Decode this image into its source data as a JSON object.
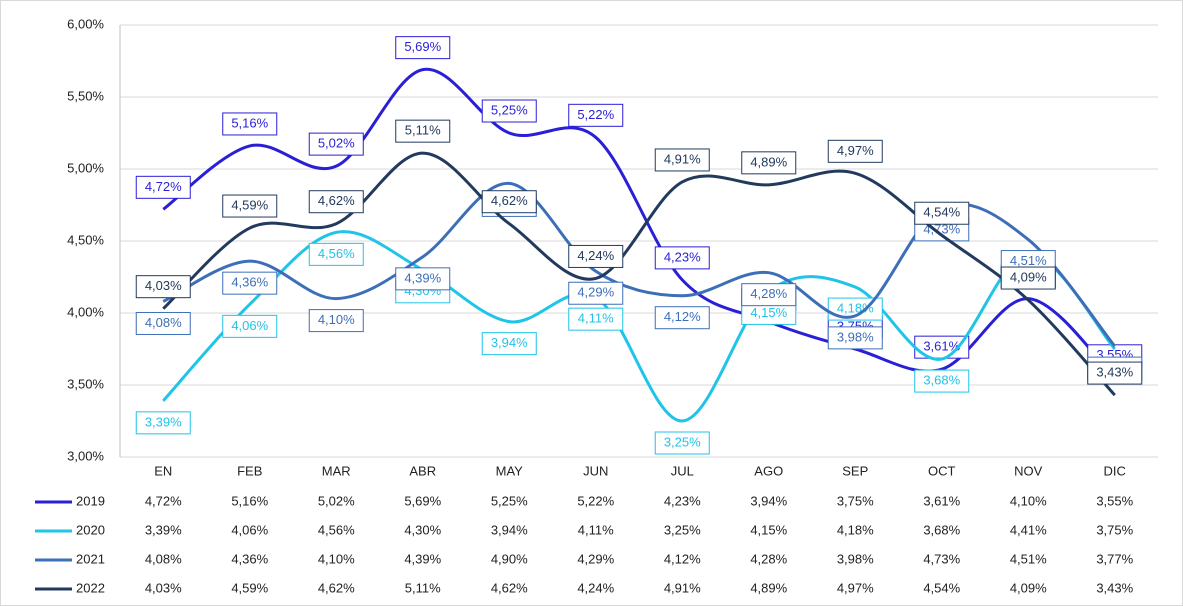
{
  "chart_data": {
    "type": "line",
    "categories": [
      "EN",
      "FEB",
      "MAR",
      "ABR",
      "MAY",
      "JUN",
      "JUL",
      "AGO",
      "SEP",
      "OCT",
      "NOV",
      "DIC"
    ],
    "ylim": [
      3,
      6
    ],
    "yticks": [
      {
        "value": 3,
        "label": "3,00%"
      },
      {
        "value": 3.5,
        "label": "3,50%"
      },
      {
        "value": 4,
        "label": "4,00%"
      },
      {
        "value": 4.5,
        "label": "4,50%"
      },
      {
        "value": 5,
        "label": "5,00%"
      },
      {
        "value": 5.5,
        "label": "5,50%"
      },
      {
        "value": 6,
        "label": "6,00%"
      }
    ],
    "grid": true,
    "series": [
      {
        "name": "2019",
        "color": "#2a1fd6",
        "values": [
          4.72,
          5.16,
          5.02,
          5.69,
          5.25,
          5.22,
          4.23,
          3.94,
          3.75,
          3.61,
          4.1,
          3.55
        ],
        "value_labels": [
          "4,72%",
          "5,16%",
          "5,02%",
          "5,69%",
          "5,25%",
          "5,22%",
          "4,23%",
          "3,94%",
          "3,75%",
          "3,61%",
          "4,10%",
          "3,55%"
        ]
      },
      {
        "name": "2020",
        "color": "#1fc4e8",
        "values": [
          3.39,
          4.06,
          4.56,
          4.3,
          3.94,
          4.11,
          3.25,
          4.15,
          4.18,
          3.68,
          4.41,
          3.75
        ],
        "value_labels": [
          "3,39%",
          "4,06%",
          "4,56%",
          "4,30%",
          "3,94%",
          "4,11%",
          "3,25%",
          "4,15%",
          "4,18%",
          "3,68%",
          "4,41%",
          "3,75%"
        ]
      },
      {
        "name": "2021",
        "color": "#3d6fb8",
        "values": [
          4.08,
          4.36,
          4.1,
          4.39,
          4.9,
          4.29,
          4.12,
          4.28,
          3.98,
          4.73,
          4.51,
          3.77
        ],
        "value_labels": [
          "4,08%",
          "4,36%",
          "4,10%",
          "4,39%",
          "4,90%",
          "4,29%",
          "4,12%",
          "4,28%",
          "3,98%",
          "4,73%",
          "4,51%",
          "3,77%"
        ]
      },
      {
        "name": "2022",
        "color": "#223a5e",
        "values": [
          4.03,
          4.59,
          4.62,
          5.11,
          4.62,
          4.24,
          4.91,
          4.89,
          4.97,
          4.54,
          4.09,
          3.43
        ],
        "value_labels": [
          "4,03%",
          "4,59%",
          "4,62%",
          "5,11%",
          "4,62%",
          "4,24%",
          "4,91%",
          "4,89%",
          "4,97%",
          "4,54%",
          "4,09%",
          "3,43%"
        ]
      }
    ]
  }
}
